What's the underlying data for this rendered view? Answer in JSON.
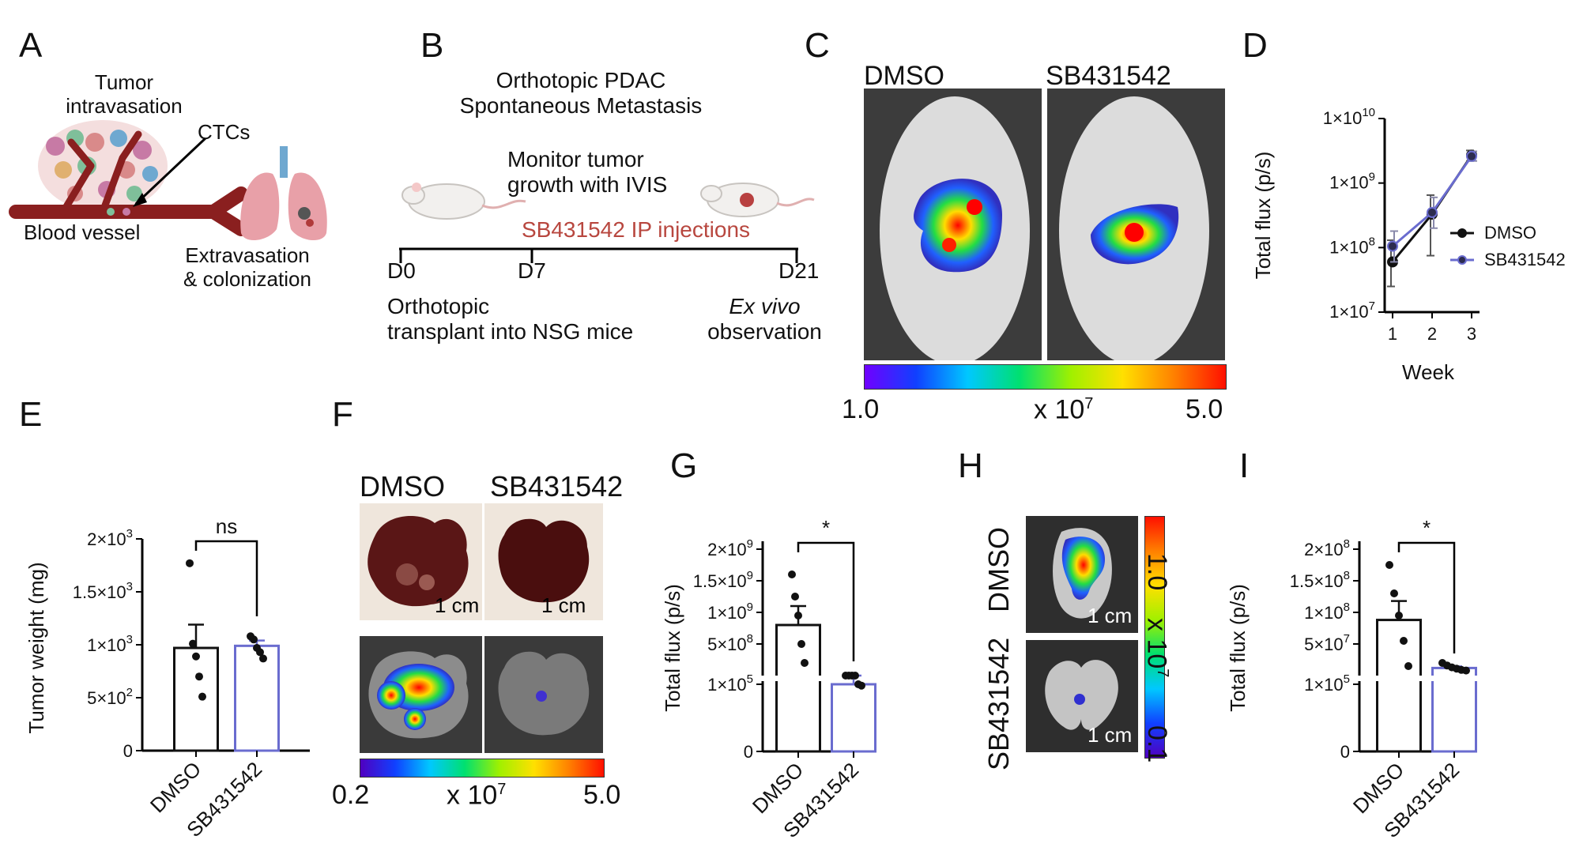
{
  "colors": {
    "dmso": "#111111",
    "sb": "#6a6ccf",
    "tumor_label": "#b8473f",
    "photo_dark": "#3a3a3a",
    "organ_red": "#5b1414"
  },
  "panels": {
    "A": {
      "letter": "A",
      "tumor_label_1": "Tumor",
      "tumor_label_2": "intravasation",
      "ctc_label": "CTCs",
      "vessel_label": "Blood vessel",
      "extrav_label_1": "Extravasation",
      "extrav_label_2": "& colonization"
    },
    "B": {
      "letter": "B",
      "title_1": "Orthotopic PDAC",
      "title_2": "Spontaneous Metastasis",
      "monitor_1": "Monitor tumor",
      "monitor_2": "growth with IVIS",
      "injection": "SB431542 IP injections",
      "d0": "D0",
      "d7": "D7",
      "d21": "D21",
      "transplant_1": "Orthotopic",
      "transplant_2": "transplant into NSG mice",
      "exvivo_1": "Ex vivo",
      "exvivo_2": "observation"
    },
    "C": {
      "letter": "C",
      "label_dmso": "DMSO",
      "label_sb": "SB431542",
      "scale_min": "1.0",
      "scale_mid": "x 10",
      "scale_exp": "7",
      "scale_max": "5.0"
    },
    "F": {
      "letter": "F",
      "label_dmso": "DMSO",
      "label_sb": "SB431542",
      "scalebar": "1 cm",
      "scale_min": "0.2",
      "scale_mid": "x 10",
      "scale_exp": "7",
      "scale_max": "5.0"
    },
    "H": {
      "letter": "H",
      "label_dmso": "DMSO",
      "label_sb": "SB431542",
      "scalebar": "1 cm",
      "scale_top": "1.0",
      "scale_mid": "x 10",
      "scale_exp": "7",
      "scale_bottom": "0.1"
    }
  },
  "chart_data": [
    {
      "panel": "D",
      "letter": "D",
      "type": "line",
      "yscale": "log",
      "xlabel": "Week",
      "ylabel": "Total flux (p/s)",
      "x": [
        1,
        2,
        3
      ],
      "xticks": [
        "1",
        "2",
        "3"
      ],
      "yticks": [
        {
          "value": 10000000,
          "base": "1×10",
          "exp": "7"
        },
        {
          "value": 100000000,
          "base": "1×10",
          "exp": "8"
        },
        {
          "value": 1000000000,
          "base": "1×10",
          "exp": "9"
        },
        {
          "value": 10000000000,
          "base": "1×10",
          "exp": "10"
        }
      ],
      "ylim": [
        10000000,
        10000000000
      ],
      "legend_position": "right",
      "series": [
        {
          "name": "DMSO",
          "values": [
            60000000,
            330000000,
            2700000000
          ],
          "err_low": [
            25000000,
            75000000,
            2200000000
          ],
          "err_high": [
            130000000,
            650000000,
            3200000000
          ]
        },
        {
          "name": "SB431542",
          "values": [
            105000000,
            350000000,
            2600000000
          ],
          "err_low": [
            60000000,
            200000000,
            2200000000
          ],
          "err_high": [
            180000000,
            600000000,
            3100000000
          ]
        }
      ]
    },
    {
      "panel": "E",
      "letter": "E",
      "type": "bar",
      "ylabel": "Tumor weight (mg)",
      "categories": [
        "DMSO",
        "SB431542"
      ],
      "values": [
        970,
        990
      ],
      "sem": [
        220,
        50
      ],
      "points": [
        [
          1770,
          1010,
          890,
          700,
          510
        ],
        [
          1080,
          1050,
          970,
          930,
          870
        ]
      ],
      "yticks": [
        {
          "value": 0,
          "base": "0",
          "exp": ""
        },
        {
          "value": 500,
          "base": "5×10",
          "exp": "2"
        },
        {
          "value": 1000,
          "base": "1×10",
          "exp": "3"
        },
        {
          "value": 1500,
          "base": "1.5×10",
          "exp": "3"
        },
        {
          "value": 2000,
          "base": "2×10",
          "exp": "3"
        }
      ],
      "ylim": [
        0,
        2000
      ],
      "significance": "ns"
    },
    {
      "panel": "G",
      "letter": "G",
      "type": "bar",
      "ylabel": "Total flux (p/s)",
      "axis_break": true,
      "categories": [
        "DMSO",
        "SB431542"
      ],
      "values": [
        800000000,
        100000
      ],
      "sem": [
        300000000,
        5000
      ],
      "points": [
        [
          1600000000,
          1250000000,
          950000000,
          500000000,
          200000000
        ],
        [
          110000,
          106000,
          104000,
          102000,
          100000,
          98000
        ]
      ],
      "yticks": [
        {
          "value": 0,
          "base": "0",
          "exp": ""
        },
        {
          "value": 100000,
          "base": "1×10",
          "exp": "5"
        },
        {
          "value": 500000000,
          "base": "5×10",
          "exp": "8"
        },
        {
          "value": 1000000000,
          "base": "1×10",
          "exp": "9"
        },
        {
          "value": 1500000000,
          "base": "1.5×10",
          "exp": "9"
        },
        {
          "value": 2000000000,
          "base": "2×10",
          "exp": "9"
        }
      ],
      "significance": "*"
    },
    {
      "panel": "I",
      "letter": "I",
      "type": "bar",
      "ylabel": "Total flux (p/s)",
      "axis_break": true,
      "categories": [
        "DMSO",
        "SB431542"
      ],
      "values": [
        88000000,
        12000000
      ],
      "sem": [
        30000000,
        2500000
      ],
      "points": [
        [
          175000000,
          130000000,
          95000000,
          55000000,
          15000000
        ],
        [
          20000000,
          16000000,
          13000000,
          11000000,
          9000000,
          8000000
        ]
      ],
      "yticks": [
        {
          "value": 0,
          "base": "0",
          "exp": ""
        },
        {
          "value": 100000,
          "base": "1×10",
          "exp": "5"
        },
        {
          "value": 50000000,
          "base": "5×10",
          "exp": "7"
        },
        {
          "value": 100000000,
          "base": "1×10",
          "exp": "8"
        },
        {
          "value": 150000000,
          "base": "1.5×10",
          "exp": "8"
        },
        {
          "value": 200000000,
          "base": "2×10",
          "exp": "8"
        }
      ],
      "significance": "*"
    }
  ]
}
